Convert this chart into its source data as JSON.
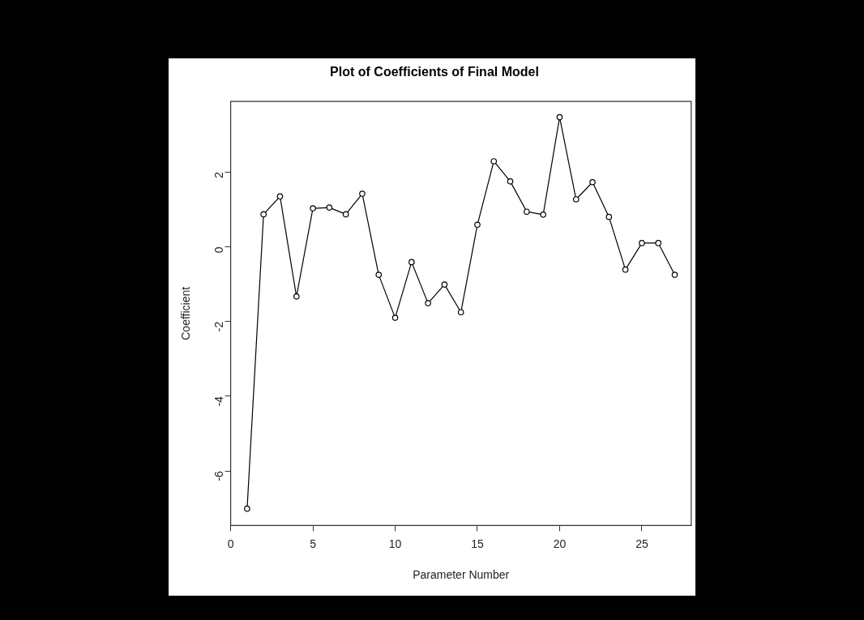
{
  "chart_data": {
    "type": "line",
    "title": "Plot of Coefficients of Final Model",
    "xlabel": "Parameter Number",
    "ylabel": "Coefficient",
    "x": [
      1,
      2,
      3,
      4,
      5,
      6,
      7,
      8,
      9,
      10,
      11,
      12,
      13,
      14,
      15,
      16,
      17,
      18,
      19,
      20,
      21,
      22,
      23,
      24,
      25,
      26,
      27
    ],
    "series": [
      {
        "color": "#000000",
        "values": [
          -7.01,
          0.87,
          1.35,
          -1.33,
          1.03,
          1.05,
          0.87,
          1.42,
          -0.75,
          -1.9,
          -0.41,
          -1.51,
          -1.01,
          -1.75,
          0.59,
          2.29,
          1.75,
          0.94,
          0.86,
          3.47,
          1.27,
          1.73,
          0.8,
          -0.61,
          0.1,
          0.1,
          -0.75
        ]
      }
    ],
    "xlim": [
      0,
      28
    ],
    "xticks": [
      0,
      5,
      10,
      15,
      20,
      25
    ],
    "ylim": [
      -7.46,
      3.89
    ],
    "yticks": [
      -6,
      -4,
      -2,
      0,
      2
    ],
    "grid": false,
    "legend": false,
    "marker": "circle",
    "line_style": "solid"
  }
}
